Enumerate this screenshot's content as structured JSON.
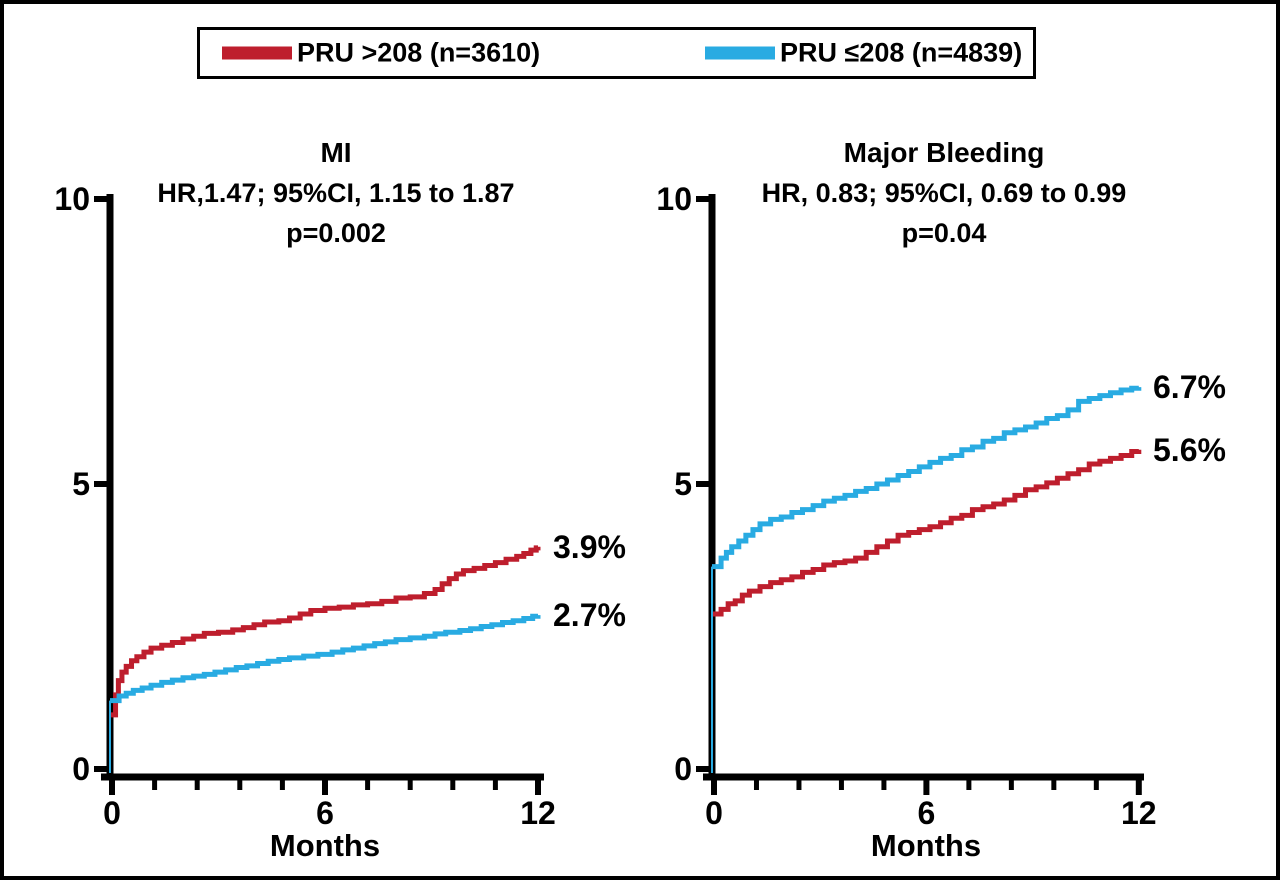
{
  "legend": {
    "items": [
      {
        "label": "PRU >208 (n=3610)",
        "color": "#BE1E2D"
      },
      {
        "label": "PRU ≤208 (n=4839)",
        "color": "#29ABE2"
      }
    ]
  },
  "chart_data": [
    {
      "type": "line",
      "style": "step",
      "title": "MI",
      "subtitle": "HR,1.47; 95%CI, 1.15 to 1.87",
      "pvalue": "p=0.002",
      "xlabel": "Months",
      "xlim": [
        0,
        12
      ],
      "ylim": [
        0,
        10
      ],
      "xticks": [
        0,
        6,
        12
      ],
      "x_minor_ticks": [
        1.2,
        2.4,
        3.6,
        4.8,
        7.2,
        8.4,
        9.6,
        10.8
      ],
      "yticks": [
        0,
        5,
        10
      ],
      "series": [
        {
          "name": "PRU >208 (n=3610)",
          "color": "#BE1E2D",
          "end_label": "3.9%",
          "points": [
            [
              0,
              0
            ],
            [
              0.05,
              0.95
            ],
            [
              0.1,
              1.3
            ],
            [
              0.18,
              1.55
            ],
            [
              0.28,
              1.7
            ],
            [
              0.4,
              1.8
            ],
            [
              0.55,
              1.9
            ],
            [
              0.7,
              1.97
            ],
            [
              0.9,
              2.05
            ],
            [
              1.1,
              2.12
            ],
            [
              1.4,
              2.17
            ],
            [
              1.7,
              2.22
            ],
            [
              2.0,
              2.28
            ],
            [
              2.3,
              2.33
            ],
            [
              2.6,
              2.38
            ],
            [
              3.0,
              2.4
            ],
            [
              3.4,
              2.44
            ],
            [
              3.7,
              2.48
            ],
            [
              4.0,
              2.53
            ],
            [
              4.3,
              2.58
            ],
            [
              4.7,
              2.6
            ],
            [
              5.0,
              2.65
            ],
            [
              5.3,
              2.72
            ],
            [
              5.6,
              2.78
            ],
            [
              6.0,
              2.82
            ],
            [
              6.4,
              2.84
            ],
            [
              6.8,
              2.88
            ],
            [
              7.2,
              2.9
            ],
            [
              7.6,
              2.94
            ],
            [
              8.0,
              3.0
            ],
            [
              8.4,
              3.02
            ],
            [
              8.8,
              3.08
            ],
            [
              9.1,
              3.15
            ],
            [
              9.3,
              3.25
            ],
            [
              9.5,
              3.34
            ],
            [
              9.7,
              3.42
            ],
            [
              9.9,
              3.48
            ],
            [
              10.2,
              3.52
            ],
            [
              10.5,
              3.57
            ],
            [
              10.8,
              3.62
            ],
            [
              11.1,
              3.68
            ],
            [
              11.4,
              3.73
            ],
            [
              11.6,
              3.78
            ],
            [
              11.8,
              3.84
            ],
            [
              11.95,
              3.88
            ],
            [
              12,
              3.9
            ]
          ]
        },
        {
          "name": "PRU ≤208 (n=4839)",
          "color": "#29ABE2",
          "end_label": "2.7%",
          "points": [
            [
              0,
              0
            ],
            [
              0.05,
              1.2
            ],
            [
              0.2,
              1.28
            ],
            [
              0.4,
              1.33
            ],
            [
              0.6,
              1.38
            ],
            [
              0.85,
              1.42
            ],
            [
              1.1,
              1.47
            ],
            [
              1.4,
              1.52
            ],
            [
              1.7,
              1.56
            ],
            [
              2.0,
              1.6
            ],
            [
              2.3,
              1.63
            ],
            [
              2.6,
              1.66
            ],
            [
              2.9,
              1.7
            ],
            [
              3.2,
              1.74
            ],
            [
              3.5,
              1.78
            ],
            [
              3.8,
              1.81
            ],
            [
              4.1,
              1.85
            ],
            [
              4.4,
              1.89
            ],
            [
              4.7,
              1.92
            ],
            [
              5.0,
              1.95
            ],
            [
              5.4,
              1.98
            ],
            [
              5.8,
              2.01
            ],
            [
              6.2,
              2.05
            ],
            [
              6.5,
              2.09
            ],
            [
              6.8,
              2.12
            ],
            [
              7.1,
              2.16
            ],
            [
              7.4,
              2.2
            ],
            [
              7.7,
              2.23
            ],
            [
              8.0,
              2.27
            ],
            [
              8.4,
              2.3
            ],
            [
              8.8,
              2.33
            ],
            [
              9.1,
              2.37
            ],
            [
              9.4,
              2.4
            ],
            [
              9.8,
              2.43
            ],
            [
              10.1,
              2.46
            ],
            [
              10.4,
              2.5
            ],
            [
              10.7,
              2.53
            ],
            [
              11.0,
              2.57
            ],
            [
              11.3,
              2.6
            ],
            [
              11.6,
              2.64
            ],
            [
              11.85,
              2.68
            ],
            [
              12,
              2.7
            ]
          ]
        }
      ]
    },
    {
      "type": "line",
      "style": "step",
      "title": "Major Bleeding",
      "subtitle": "HR, 0.83; 95%CI, 0.69 to 0.99",
      "pvalue": "p=0.04",
      "xlabel": "Months",
      "xlim": [
        0,
        12
      ],
      "ylim": [
        0,
        10
      ],
      "xticks": [
        0,
        6,
        12
      ],
      "x_minor_ticks": [
        1.2,
        2.4,
        3.6,
        4.8,
        7.2,
        8.4,
        9.6,
        10.8
      ],
      "yticks": [
        0,
        5,
        10
      ],
      "series": [
        {
          "name": "PRU >208 (n=3610)",
          "color": "#BE1E2D",
          "end_label": "5.6%",
          "points": [
            [
              0,
              0
            ],
            [
              0.05,
              2.72
            ],
            [
              0.2,
              2.8
            ],
            [
              0.4,
              2.9
            ],
            [
              0.6,
              2.95
            ],
            [
              0.8,
              3.05
            ],
            [
              1.0,
              3.12
            ],
            [
              1.3,
              3.2
            ],
            [
              1.6,
              3.27
            ],
            [
              1.9,
              3.32
            ],
            [
              2.2,
              3.37
            ],
            [
              2.5,
              3.45
            ],
            [
              2.8,
              3.5
            ],
            [
              3.1,
              3.58
            ],
            [
              3.4,
              3.62
            ],
            [
              3.7,
              3.65
            ],
            [
              4.0,
              3.7
            ],
            [
              4.3,
              3.8
            ],
            [
              4.6,
              3.9
            ],
            [
              4.9,
              4.0
            ],
            [
              5.2,
              4.1
            ],
            [
              5.5,
              4.15
            ],
            [
              5.8,
              4.2
            ],
            [
              6.1,
              4.25
            ],
            [
              6.4,
              4.32
            ],
            [
              6.7,
              4.4
            ],
            [
              7.0,
              4.45
            ],
            [
              7.3,
              4.55
            ],
            [
              7.6,
              4.6
            ],
            [
              7.9,
              4.65
            ],
            [
              8.2,
              4.72
            ],
            [
              8.5,
              4.8
            ],
            [
              8.8,
              4.9
            ],
            [
              9.1,
              4.95
            ],
            [
              9.4,
              5.02
            ],
            [
              9.7,
              5.1
            ],
            [
              10.0,
              5.18
            ],
            [
              10.3,
              5.25
            ],
            [
              10.6,
              5.35
            ],
            [
              10.9,
              5.4
            ],
            [
              11.2,
              5.45
            ],
            [
              11.5,
              5.5
            ],
            [
              11.8,
              5.57
            ],
            [
              12,
              5.6
            ]
          ]
        },
        {
          "name": "PRU ≤208 (n=4839)",
          "color": "#29ABE2",
          "end_label": "6.7%",
          "points": [
            [
              0,
              0
            ],
            [
              0.05,
              3.55
            ],
            [
              0.2,
              3.7
            ],
            [
              0.35,
              3.8
            ],
            [
              0.5,
              3.9
            ],
            [
              0.7,
              4.0
            ],
            [
              0.9,
              4.1
            ],
            [
              1.1,
              4.2
            ],
            [
              1.3,
              4.3
            ],
            [
              1.6,
              4.38
            ],
            [
              1.9,
              4.42
            ],
            [
              2.2,
              4.5
            ],
            [
              2.5,
              4.55
            ],
            [
              2.8,
              4.62
            ],
            [
              3.1,
              4.7
            ],
            [
              3.4,
              4.75
            ],
            [
              3.7,
              4.8
            ],
            [
              4.0,
              4.87
            ],
            [
              4.3,
              4.92
            ],
            [
              4.6,
              5.0
            ],
            [
              4.9,
              5.07
            ],
            [
              5.2,
              5.15
            ],
            [
              5.5,
              5.22
            ],
            [
              5.8,
              5.3
            ],
            [
              6.1,
              5.38
            ],
            [
              6.4,
              5.45
            ],
            [
              6.7,
              5.5
            ],
            [
              7.0,
              5.6
            ],
            [
              7.3,
              5.65
            ],
            [
              7.6,
              5.75
            ],
            [
              7.9,
              5.8
            ],
            [
              8.2,
              5.9
            ],
            [
              8.5,
              5.95
            ],
            [
              8.8,
              6.0
            ],
            [
              9.1,
              6.07
            ],
            [
              9.4,
              6.15
            ],
            [
              9.7,
              6.2
            ],
            [
              10.0,
              6.3
            ],
            [
              10.3,
              6.45
            ],
            [
              10.6,
              6.5
            ],
            [
              10.9,
              6.55
            ],
            [
              11.2,
              6.6
            ],
            [
              11.5,
              6.65
            ],
            [
              11.8,
              6.68
            ],
            [
              12,
              6.7
            ]
          ]
        }
      ]
    }
  ]
}
